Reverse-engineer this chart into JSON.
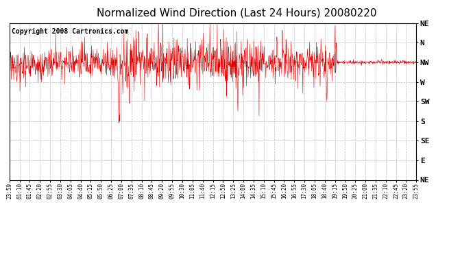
{
  "title": "Normalized Wind Direction (Last 24 Hours) 20080220",
  "copyright_text": "Copyright 2008 Cartronics.com",
  "ytick_labels": [
    "NE",
    "N",
    "NW",
    "W",
    "SW",
    "S",
    "SE",
    "E",
    "NE"
  ],
  "ytick_values": [
    8,
    7,
    6,
    5,
    4,
    3,
    2,
    1,
    0
  ],
  "line_color": "#dd0000",
  "bg_color": "#ffffff",
  "plot_bg_color": "#ffffff",
  "grid_color": "#bbbbbb",
  "title_fontsize": 11,
  "copyright_fontsize": 7,
  "xtick_labels": [
    "23:59",
    "01:10",
    "01:45",
    "02:20",
    "02:55",
    "03:30",
    "04:05",
    "04:40",
    "05:15",
    "05:50",
    "06:25",
    "07:00",
    "07:35",
    "08:10",
    "08:45",
    "09:20",
    "09:55",
    "10:30",
    "11:05",
    "11:40",
    "12:15",
    "12:50",
    "13:25",
    "14:00",
    "14:35",
    "15:10",
    "15:45",
    "16:20",
    "16:55",
    "17:30",
    "18:05",
    "18:40",
    "19:15",
    "19:50",
    "20:25",
    "21:00",
    "21:35",
    "22:10",
    "22:45",
    "23:20",
    "23:55"
  ]
}
